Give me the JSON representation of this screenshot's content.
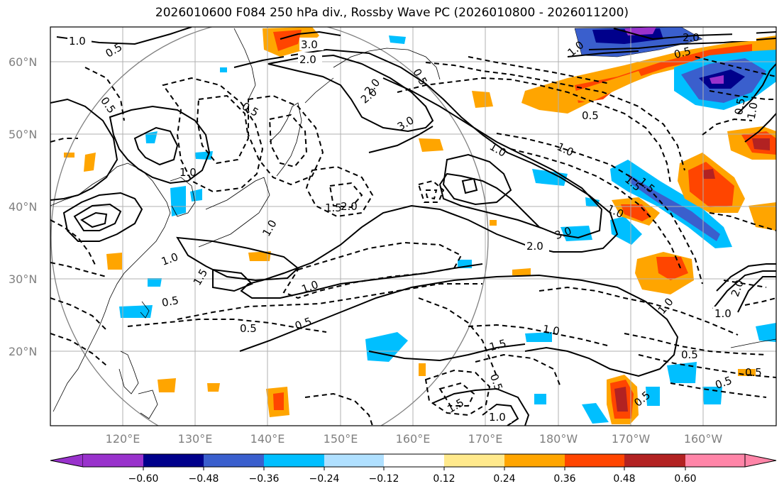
{
  "title": "2026010600 F084 250 hPa div., Rossby Wave PC (2026010800 - 2026011200)",
  "lat_labels": [
    "60°N",
    "50°N",
    "40°N",
    "30°N",
    "20°N"
  ],
  "lon_labels": [
    "120°E",
    "130°E",
    "140°E",
    "150°E",
    "160°E",
    "170°E",
    "180°W",
    "170°W",
    "160°W"
  ],
  "contour_labels": [
    "1.0",
    "0.5",
    "0.5",
    "3.0",
    "2.0",
    "2.0",
    "3.0",
    "0.5",
    "1.0",
    "1.0",
    "1.0",
    "2.0",
    "3.0",
    "1.0",
    "0.5",
    "1.5",
    "2.0",
    "1.0",
    "0.5",
    "2.0",
    "1.5",
    "1.0",
    "2.0",
    "0.5",
    "0.5",
    "0.5",
    "1.0",
    "0.5",
    "1.5",
    "1.0",
    "1.5",
    "1.0",
    "1.0",
    "0.5",
    "0.5",
    "2.0",
    "1.5",
    "1.0",
    "0.5",
    "1.5",
    "0.5",
    "0.5",
    "1.0",
    "1.0",
    "0.5"
  ],
  "colorbar": {
    "ticks": [
      "−0.60",
      "−0.48",
      "−0.36",
      "−0.24",
      "−0.12",
      "0.12",
      "0.24",
      "0.36",
      "0.48",
      "0.60"
    ],
    "colors": [
      "#9932cc",
      "#00008b",
      "#3a5fcd",
      "#00bfff",
      "#b0e0ff",
      "#ffffff",
      "#ffe98c",
      "#ffa500",
      "#ff4500",
      "#b22222",
      "#ff85a8"
    ]
  }
}
